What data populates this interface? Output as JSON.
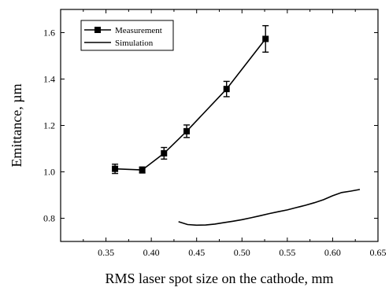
{
  "chart_data": {
    "type": "line",
    "xlabel": "RMS laser spot size on the cathode, mm",
    "ylabel": "Emittance, µm",
    "xlim": [
      0.3,
      0.65
    ],
    "ylim": [
      0.7,
      1.7
    ],
    "x_ticks": [
      0.35,
      0.4,
      0.45,
      0.5,
      0.55,
      0.6,
      0.65
    ],
    "x_tick_labels": [
      "0.35",
      "0.40",
      "0.45",
      "0.50",
      "0.55",
      "0.60",
      "0.65"
    ],
    "y_ticks": [
      0.8,
      1.0,
      1.2,
      1.4,
      1.6
    ],
    "y_tick_labels": [
      "0.8",
      "1.0",
      "1.2",
      "1.4",
      "1.6"
    ],
    "legend_position": "top-left",
    "grid": false,
    "series": [
      {
        "name": "Measurement",
        "style": "line-square-markers",
        "x": [
          0.36,
          0.39,
          0.414,
          0.439,
          0.483,
          0.526
        ],
        "y": [
          1.013,
          1.008,
          1.08,
          1.175,
          1.357,
          1.573
        ],
        "error": [
          0.02,
          0.013,
          0.025,
          0.027,
          0.033,
          0.057
        ]
      },
      {
        "name": "Simulation",
        "style": "line",
        "x": [
          0.43,
          0.44,
          0.45,
          0.46,
          0.47,
          0.48,
          0.49,
          0.5,
          0.51,
          0.52,
          0.53,
          0.54,
          0.55,
          0.56,
          0.57,
          0.58,
          0.59,
          0.6,
          0.61,
          0.62,
          0.63
        ],
        "y": [
          0.785,
          0.773,
          0.77,
          0.771,
          0.775,
          0.781,
          0.787,
          0.794,
          0.802,
          0.811,
          0.82,
          0.828,
          0.836,
          0.846,
          0.856,
          0.867,
          0.88,
          0.897,
          0.911,
          0.917,
          0.924
        ]
      }
    ]
  }
}
